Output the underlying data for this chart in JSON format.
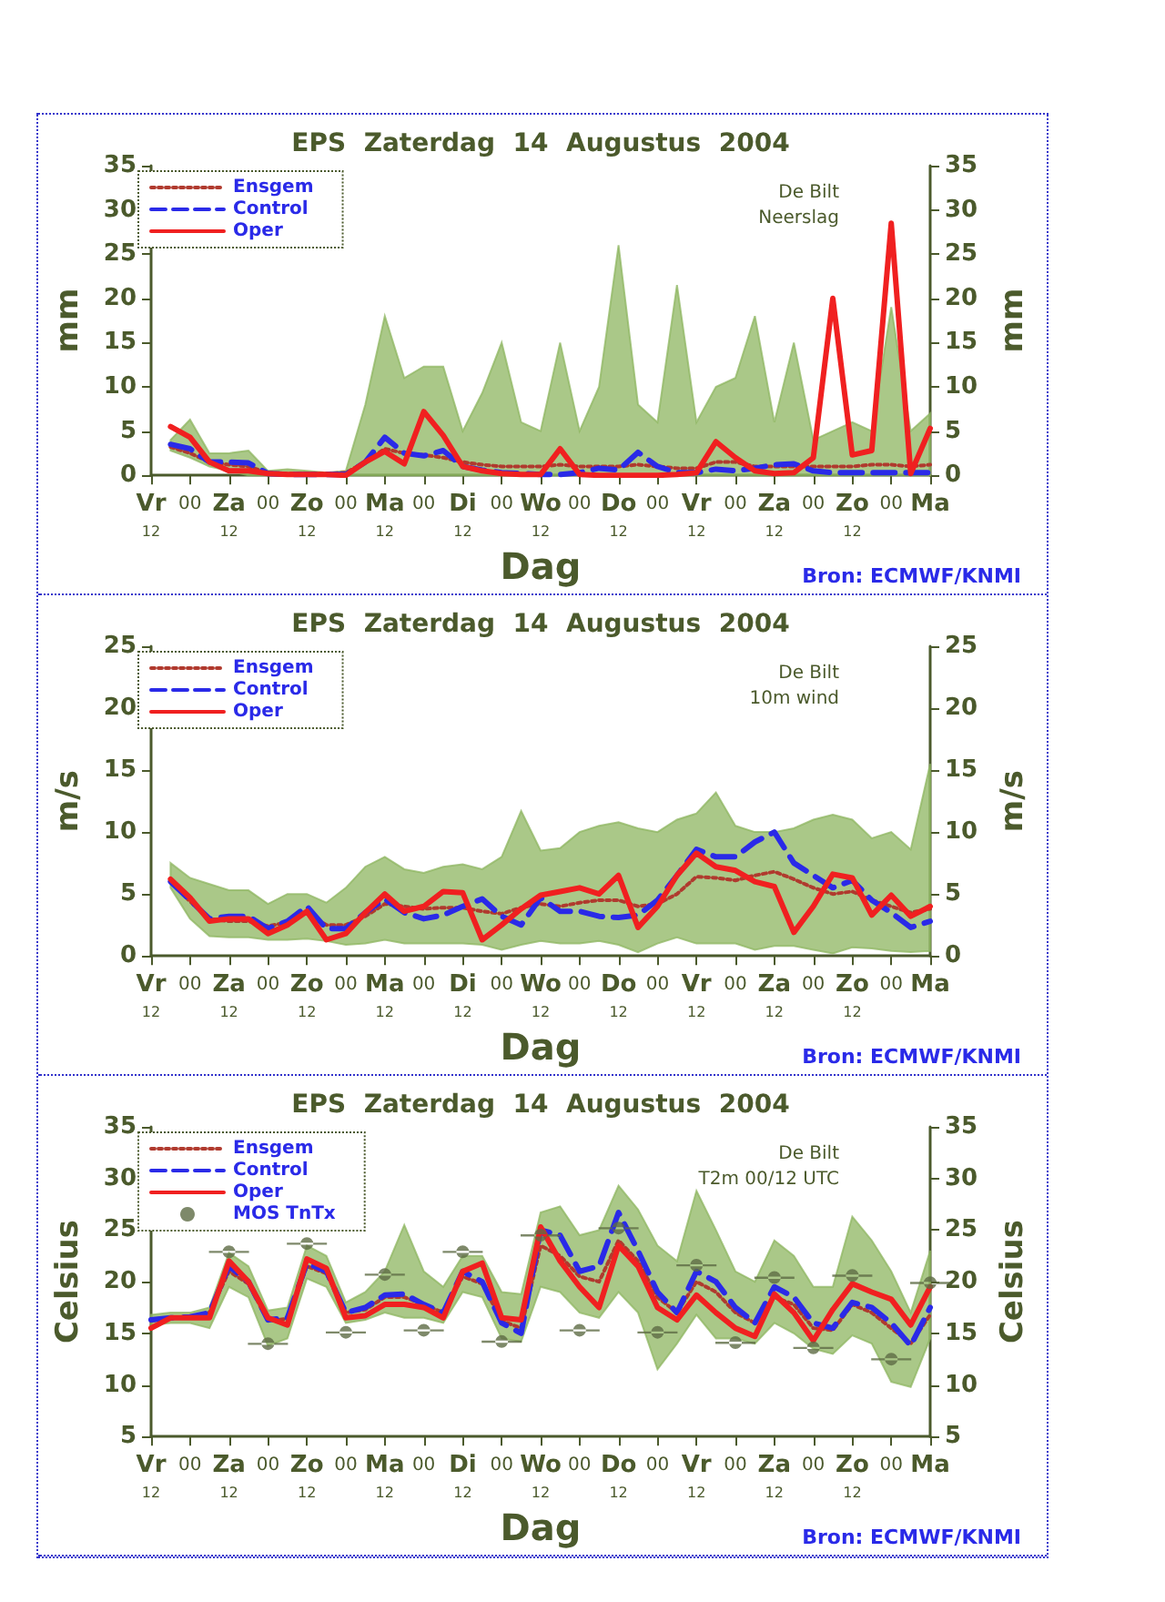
{
  "chart_data": [
    {
      "type": "line",
      "title": "EPS  Zaterdag  14  Augustus  2004",
      "xlabel": "Dag",
      "ylabel": "mm",
      "y2label": "mm",
      "annotations": [
        "De Bilt",
        "Neerslag",
        "Bron: ECMWF/KNMI"
      ],
      "categories": [
        "Vr\n12",
        null,
        "00",
        null,
        "Za\n12",
        null,
        "00",
        null,
        "Zo\n12",
        null,
        "00",
        null,
        "Ma\n12",
        null,
        "00",
        null,
        "Di\n12",
        null,
        "00",
        null,
        "Wo\n12",
        null,
        "00",
        null,
        "Do\n12",
        null,
        "00",
        null,
        "Vr\n12",
        null,
        "00",
        null,
        "Za\n12",
        null,
        "00",
        null,
        "Zo\n12",
        null,
        "00",
        null,
        "Ma"
      ],
      "ylim": [
        0,
        35
      ],
      "yticks": [
        0,
        5,
        10,
        15,
        20,
        25,
        30,
        35
      ],
      "y2lim": [
        0,
        35
      ],
      "y2ticks": [
        0,
        5,
        10,
        15,
        20,
        25,
        30,
        35
      ],
      "grid": false,
      "legend": "top left",
      "marker": "none",
      "series": [
        {
          "name": "Ensgem",
          "color": "#b03a2e",
          "line_style": "dotted",
          "values": [
            null,
            3.2,
            2.5,
            1.5,
            1.2,
            1.0,
            0.3,
            0.2,
            0.2,
            0.2,
            0.3,
            1.5,
            3.0,
            2.5,
            2.3,
            2.0,
            1.5,
            1.2,
            1.0,
            1.0,
            1.0,
            1.2,
            1.0,
            1.0,
            1.0,
            1.2,
            1.0,
            0.8,
            0.8,
            1.5,
            1.5,
            1.0,
            1.0,
            1.0,
            1.0,
            1.0,
            1.0,
            1.2,
            1.2,
            1.0,
            1.2
          ],
          "lower": [
            null,
            2.8,
            2.0,
            1.0,
            0.5,
            0,
            0,
            0,
            0,
            0,
            0,
            0,
            0,
            0,
            0,
            0,
            0,
            0,
            0,
            0,
            0,
            0,
            0,
            0,
            0,
            0,
            0,
            0,
            0,
            0,
            0,
            0,
            0,
            0,
            0,
            0,
            0,
            0,
            0,
            0,
            0
          ],
          "upper": [
            null,
            4,
            6.3,
            2.5,
            2.5,
            2.8,
            0.5,
            0.7,
            0.5,
            0.3,
            0.5,
            8,
            18,
            11,
            12.3,
            12.3,
            5,
            9.3,
            15,
            6,
            5,
            15,
            5,
            10,
            26,
            8,
            6,
            21.5,
            6,
            10,
            11,
            18,
            6,
            15,
            4,
            5,
            6,
            5,
            19,
            5,
            7
          ]
        },
        {
          "name": "Control",
          "color": "#2a2ae8",
          "line_style": "dashed",
          "values": [
            null,
            3.5,
            3.0,
            1.5,
            1.5,
            1.4,
            0.2,
            0.1,
            0.1,
            0.1,
            0.1,
            1.5,
            4.3,
            2.5,
            2.2,
            2.8,
            1.0,
            0.6,
            0.3,
            0.2,
            0.1,
            0.1,
            0.3,
            0.8,
            0.6,
            2.6,
            1.0,
            0.3,
            0.3,
            0.7,
            0.5,
            0.8,
            1.2,
            1.3,
            0.5,
            0.3,
            0.3,
            0.3,
            0.3,
            0.3,
            0.3
          ]
        },
        {
          "name": "Oper",
          "color": "#f02020",
          "line_style": "solid",
          "values": [
            null,
            5.5,
            4.3,
            1.5,
            0.5,
            0.5,
            0.2,
            0.1,
            0.1,
            0.1,
            0,
            1.5,
            2.7,
            1.3,
            7.2,
            4.5,
            1.0,
            0.5,
            0.2,
            0.1,
            0.1,
            3.0,
            0.1,
            0,
            0,
            0,
            0,
            0.1,
            0.3,
            3.8,
            2.0,
            0.5,
            0.2,
            0.3,
            2.0,
            20,
            2.3,
            2.8,
            28.5,
            0.2,
            5.3
          ]
        }
      ]
    },
    {
      "type": "line",
      "title": "EPS  Zaterdag  14  Augustus  2004",
      "xlabel": "Dag",
      "ylabel": "m/s",
      "y2label": "m/s",
      "annotations": [
        "De Bilt",
        "10m wind",
        "Bron: ECMWF/KNMI"
      ],
      "categories": [
        "Vr\n12",
        null,
        "00",
        null,
        "Za\n12",
        null,
        "00",
        null,
        "Zo\n12",
        null,
        "00",
        null,
        "Ma\n12",
        null,
        "00",
        null,
        "Di\n12",
        null,
        "00",
        null,
        "Wo\n12",
        null,
        "00",
        null,
        "Do\n12",
        null,
        "00",
        null,
        "Vr\n12",
        null,
        "00",
        null,
        "Za\n12",
        null,
        "00",
        null,
        "Zo\n12",
        null,
        "00",
        null,
        "Ma"
      ],
      "ylim": [
        0,
        25
      ],
      "yticks": [
        0,
        5,
        10,
        15,
        20,
        25
      ],
      "y2lim": [
        0,
        25
      ],
      "y2ticks": [
        0,
        5,
        10,
        15,
        20,
        25
      ],
      "grid": false,
      "legend": "top left",
      "marker": "none",
      "series": [
        {
          "name": "Ensgem",
          "color": "#b03a2e",
          "line_style": "dotted",
          "values": [
            null,
            6.0,
            4.4,
            3.0,
            2.8,
            2.8,
            2.4,
            2.7,
            3.5,
            2.5,
            2.5,
            3.2,
            4.2,
            4.0,
            3.8,
            3.9,
            3.9,
            3.6,
            3.4,
            3.9,
            4.2,
            4.0,
            4.3,
            4.5,
            4.5,
            4.0,
            4.2,
            5.0,
            6.4,
            6.3,
            6.1,
            6.5,
            6.8,
            6.2,
            5.5,
            5.0,
            5.2,
            4.5,
            4.0,
            3.5,
            3.8
          ],
          "lower": [
            null,
            5.5,
            3.0,
            1.6,
            1.5,
            1.5,
            1.3,
            1.3,
            1.4,
            1.2,
            0.9,
            1.0,
            1.3,
            1.0,
            1.0,
            1.0,
            1.0,
            0.9,
            0.5,
            0.9,
            1.2,
            1.0,
            1.0,
            1.2,
            0.9,
            0.3,
            1.0,
            1.5,
            1.0,
            1.0,
            1.0,
            0.5,
            0.8,
            0.8,
            0.5,
            0.2,
            0.7,
            0.6,
            0.4,
            0.3,
            0.4
          ],
          "upper": [
            null,
            7.5,
            6.3,
            5.8,
            5.3,
            5.3,
            4.2,
            5.0,
            5.0,
            4.3,
            5.5,
            7.2,
            8.0,
            7.0,
            6.7,
            7.2,
            7.4,
            7.0,
            8.0,
            11.7,
            8.5,
            8.7,
            10.0,
            10.5,
            10.8,
            10.3,
            10.0,
            11.0,
            11.5,
            13.2,
            10.5,
            10.0,
            10.0,
            10.3,
            11.0,
            11.4,
            11.0,
            9.5,
            10.0,
            8.6,
            15.5
          ]
        },
        {
          "name": "Control",
          "color": "#2a2ae8",
          "line_style": "dashed",
          "values": [
            null,
            6.0,
            4.5,
            3.0,
            3.2,
            3.2,
            2.2,
            2.8,
            4.0,
            2.2,
            2.2,
            3.5,
            4.6,
            3.5,
            3.0,
            3.3,
            4.0,
            4.6,
            3.2,
            2.5,
            4.7,
            3.6,
            3.6,
            3.2,
            3.1,
            3.3,
            4.5,
            6.5,
            8.6,
            8.0,
            8.0,
            9.2,
            10.0,
            7.5,
            6.5,
            5.5,
            6.1,
            4.5,
            3.5,
            2.3,
            2.8
          ]
        },
        {
          "name": "Oper",
          "color": "#f02020",
          "line_style": "solid",
          "values": [
            null,
            6.2,
            4.7,
            2.8,
            3.0,
            3.0,
            1.8,
            2.5,
            3.6,
            1.3,
            1.8,
            3.5,
            5.0,
            3.6,
            4.0,
            5.2,
            5.1,
            1.3,
            2.5,
            3.8,
            4.9,
            5.2,
            5.5,
            5.0,
            6.5,
            2.3,
            4.0,
            6.5,
            8.3,
            7.2,
            6.9,
            6.0,
            5.6,
            1.9,
            4.0,
            6.6,
            6.3,
            3.3,
            4.9,
            3.2,
            4.0
          ]
        }
      ]
    },
    {
      "type": "line",
      "title": "EPS  Zaterdag  14  Augustus  2004",
      "xlabel": "Dag",
      "ylabel": "Celsius",
      "y2label": "Celsius",
      "annotations": [
        "De Bilt",
        "T2m 00/12 UTC",
        "Bron: ECMWF/KNMI"
      ],
      "categories": [
        "Vr\n12",
        null,
        "00",
        null,
        "Za\n12",
        null,
        "00",
        null,
        "Zo\n12",
        null,
        "00",
        null,
        "Ma\n12",
        null,
        "00",
        null,
        "Di\n12",
        null,
        "00",
        null,
        "Wo\n12",
        null,
        "00",
        null,
        "Do\n12",
        null,
        "00",
        null,
        "Vr\n12",
        null,
        "00",
        null,
        "Za\n12",
        null,
        "00",
        null,
        "Zo\n12",
        null,
        "00",
        null,
        "Ma"
      ],
      "ylim": [
        5,
        35
      ],
      "yticks": [
        5,
        10,
        15,
        20,
        25,
        30,
        35
      ],
      "y2lim": [
        5,
        35
      ],
      "y2ticks": [
        5,
        10,
        15,
        20,
        25,
        30,
        35
      ],
      "grid": false,
      "legend": "top left",
      "marker": "none",
      "series": [
        {
          "name": "Ensgem",
          "color": "#b03a2e",
          "line_style": "dotted",
          "values": [
            16.2,
            16.5,
            16.6,
            17,
            21,
            19.8,
            16.2,
            16.4,
            21.5,
            20.8,
            17,
            17.3,
            18.5,
            18.5,
            17.8,
            17,
            20.5,
            19.8,
            16.2,
            15.5,
            23.5,
            22.5,
            20.5,
            20,
            24,
            22,
            18.5,
            17,
            20,
            19,
            17,
            16,
            18.5,
            17.8,
            15.5,
            15.3,
            17.8,
            17,
            15.5,
            14,
            16.8
          ],
          "lower": [
            15.8,
            16,
            16,
            15.5,
            19.5,
            18.5,
            13.8,
            14.5,
            20.3,
            19.5,
            16,
            16.3,
            17,
            16.5,
            16.5,
            16,
            19,
            18.5,
            14.5,
            14.2,
            19.5,
            19,
            17,
            16.5,
            19,
            17,
            11.5,
            14,
            16.8,
            14.5,
            14.5,
            14,
            16,
            15,
            13.5,
            13,
            14.8,
            14,
            10.3,
            9.8,
            14.5
          ],
          "upper": [
            16.8,
            17,
            17,
            17.5,
            22.8,
            21.5,
            17.2,
            17.5,
            23.5,
            22.5,
            18,
            19,
            21,
            25.5,
            21,
            19.5,
            22.5,
            22.5,
            19,
            18.8,
            26.7,
            27.3,
            24.5,
            25,
            29.3,
            27,
            23.5,
            22,
            28.8,
            25,
            21,
            20,
            24,
            22.5,
            19.5,
            19.5,
            26.3,
            24,
            21,
            17,
            23
          ]
        },
        {
          "name": "Control",
          "color": "#2a2ae8",
          "line_style": "dashed",
          "values": [
            16.3,
            16.5,
            16.6,
            17,
            21.5,
            20,
            16.3,
            16.5,
            21.8,
            21,
            17,
            17.5,
            18.7,
            18.8,
            17.8,
            17,
            21,
            20,
            16,
            15,
            25,
            24.5,
            21,
            21.5,
            26.7,
            23,
            19,
            17,
            21,
            20,
            17.5,
            16,
            19.5,
            18.5,
            16,
            15.5,
            18,
            17.5,
            16,
            13.8,
            17.5
          ]
        },
        {
          "name": "Oper",
          "color": "#f02020",
          "line_style": "solid",
          "values": [
            15.5,
            16.5,
            16.5,
            16.5,
            22,
            20,
            16.5,
            15.8,
            22.2,
            21.3,
            16.5,
            16.7,
            17.8,
            17.8,
            17.5,
            16.5,
            21,
            21.8,
            16.5,
            16.3,
            25.3,
            22,
            19.5,
            17.5,
            23.5,
            21.5,
            17.5,
            16.3,
            18.7,
            17,
            15.5,
            14.7,
            18.8,
            17,
            14.3,
            17.3,
            19.8,
            19,
            18.3,
            15.8,
            19.5
          ]
        },
        {
          "name": "MOS TnTx",
          "type": "scatter",
          "marker": "circle",
          "color": "#5e6b45",
          "values": [
            null,
            null,
            null,
            null,
            22.9,
            null,
            14.0,
            null,
            23.7,
            null,
            15.1,
            null,
            20.7,
            null,
            15.3,
            null,
            22.9,
            null,
            14.2,
            null,
            24.5,
            null,
            15.3,
            null,
            25.2,
            null,
            15.1,
            null,
            21.6,
            null,
            14.1,
            null,
            20.4,
            null,
            13.6,
            null,
            20.6,
            null,
            12.5,
            null,
            19.9
          ]
        }
      ]
    }
  ]
}
